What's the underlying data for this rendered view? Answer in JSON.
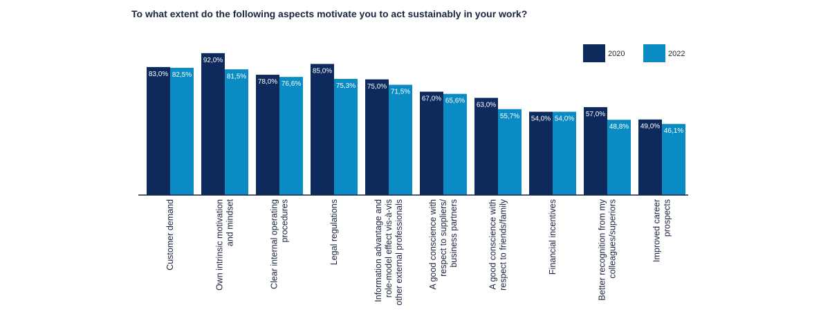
{
  "chart_data": {
    "type": "bar",
    "title": "To what extent do the following aspects motivate you to act sustainably in your work?",
    "xlabel": "",
    "ylabel": "",
    "ylim": [
      0,
      100
    ],
    "grid": false,
    "legend_position": "top-right",
    "categories": [
      [
        "Customer demand"
      ],
      [
        "Own intrinsic motivation",
        "and mindset"
      ],
      [
        "Clear internal operating",
        "procedures"
      ],
      [
        "Legal regulations"
      ],
      [
        "Information advantage and",
        "role-model effect vis-à-vis",
        "other external professionals"
      ],
      [
        "A good conscience with",
        "respect to suppliers/",
        "business partners"
      ],
      [
        "A good conscience with",
        "respect to friends/family"
      ],
      [
        "Financial incentives"
      ],
      [
        "Better recognition from my",
        "colleagues/superiors"
      ],
      [
        "Improved career",
        "prospects"
      ]
    ],
    "series": [
      {
        "name": "2020",
        "color": "#0e2a5c",
        "values": [
          83.0,
          92.0,
          78.0,
          85.0,
          75.0,
          67.0,
          63.0,
          54.0,
          57.0,
          49.0
        ],
        "labels": [
          "83,0%",
          "92,0%",
          "78,0%",
          "85,0%",
          "75,0%",
          "67,0%",
          "63,0%",
          "54,0%",
          "57,0%",
          "49,0%"
        ]
      },
      {
        "name": "2022",
        "color": "#0a8bc3",
        "values": [
          82.5,
          81.5,
          76.6,
          75.3,
          71.5,
          65.6,
          55.7,
          54.0,
          48.8,
          46.1
        ],
        "labels": [
          "82,5%",
          "81,5%",
          "76,6%",
          "75,3%",
          "71,5%",
          "65,6%",
          "55,7%",
          "54,0%",
          "48,8%",
          "46,1%"
        ]
      }
    ]
  }
}
